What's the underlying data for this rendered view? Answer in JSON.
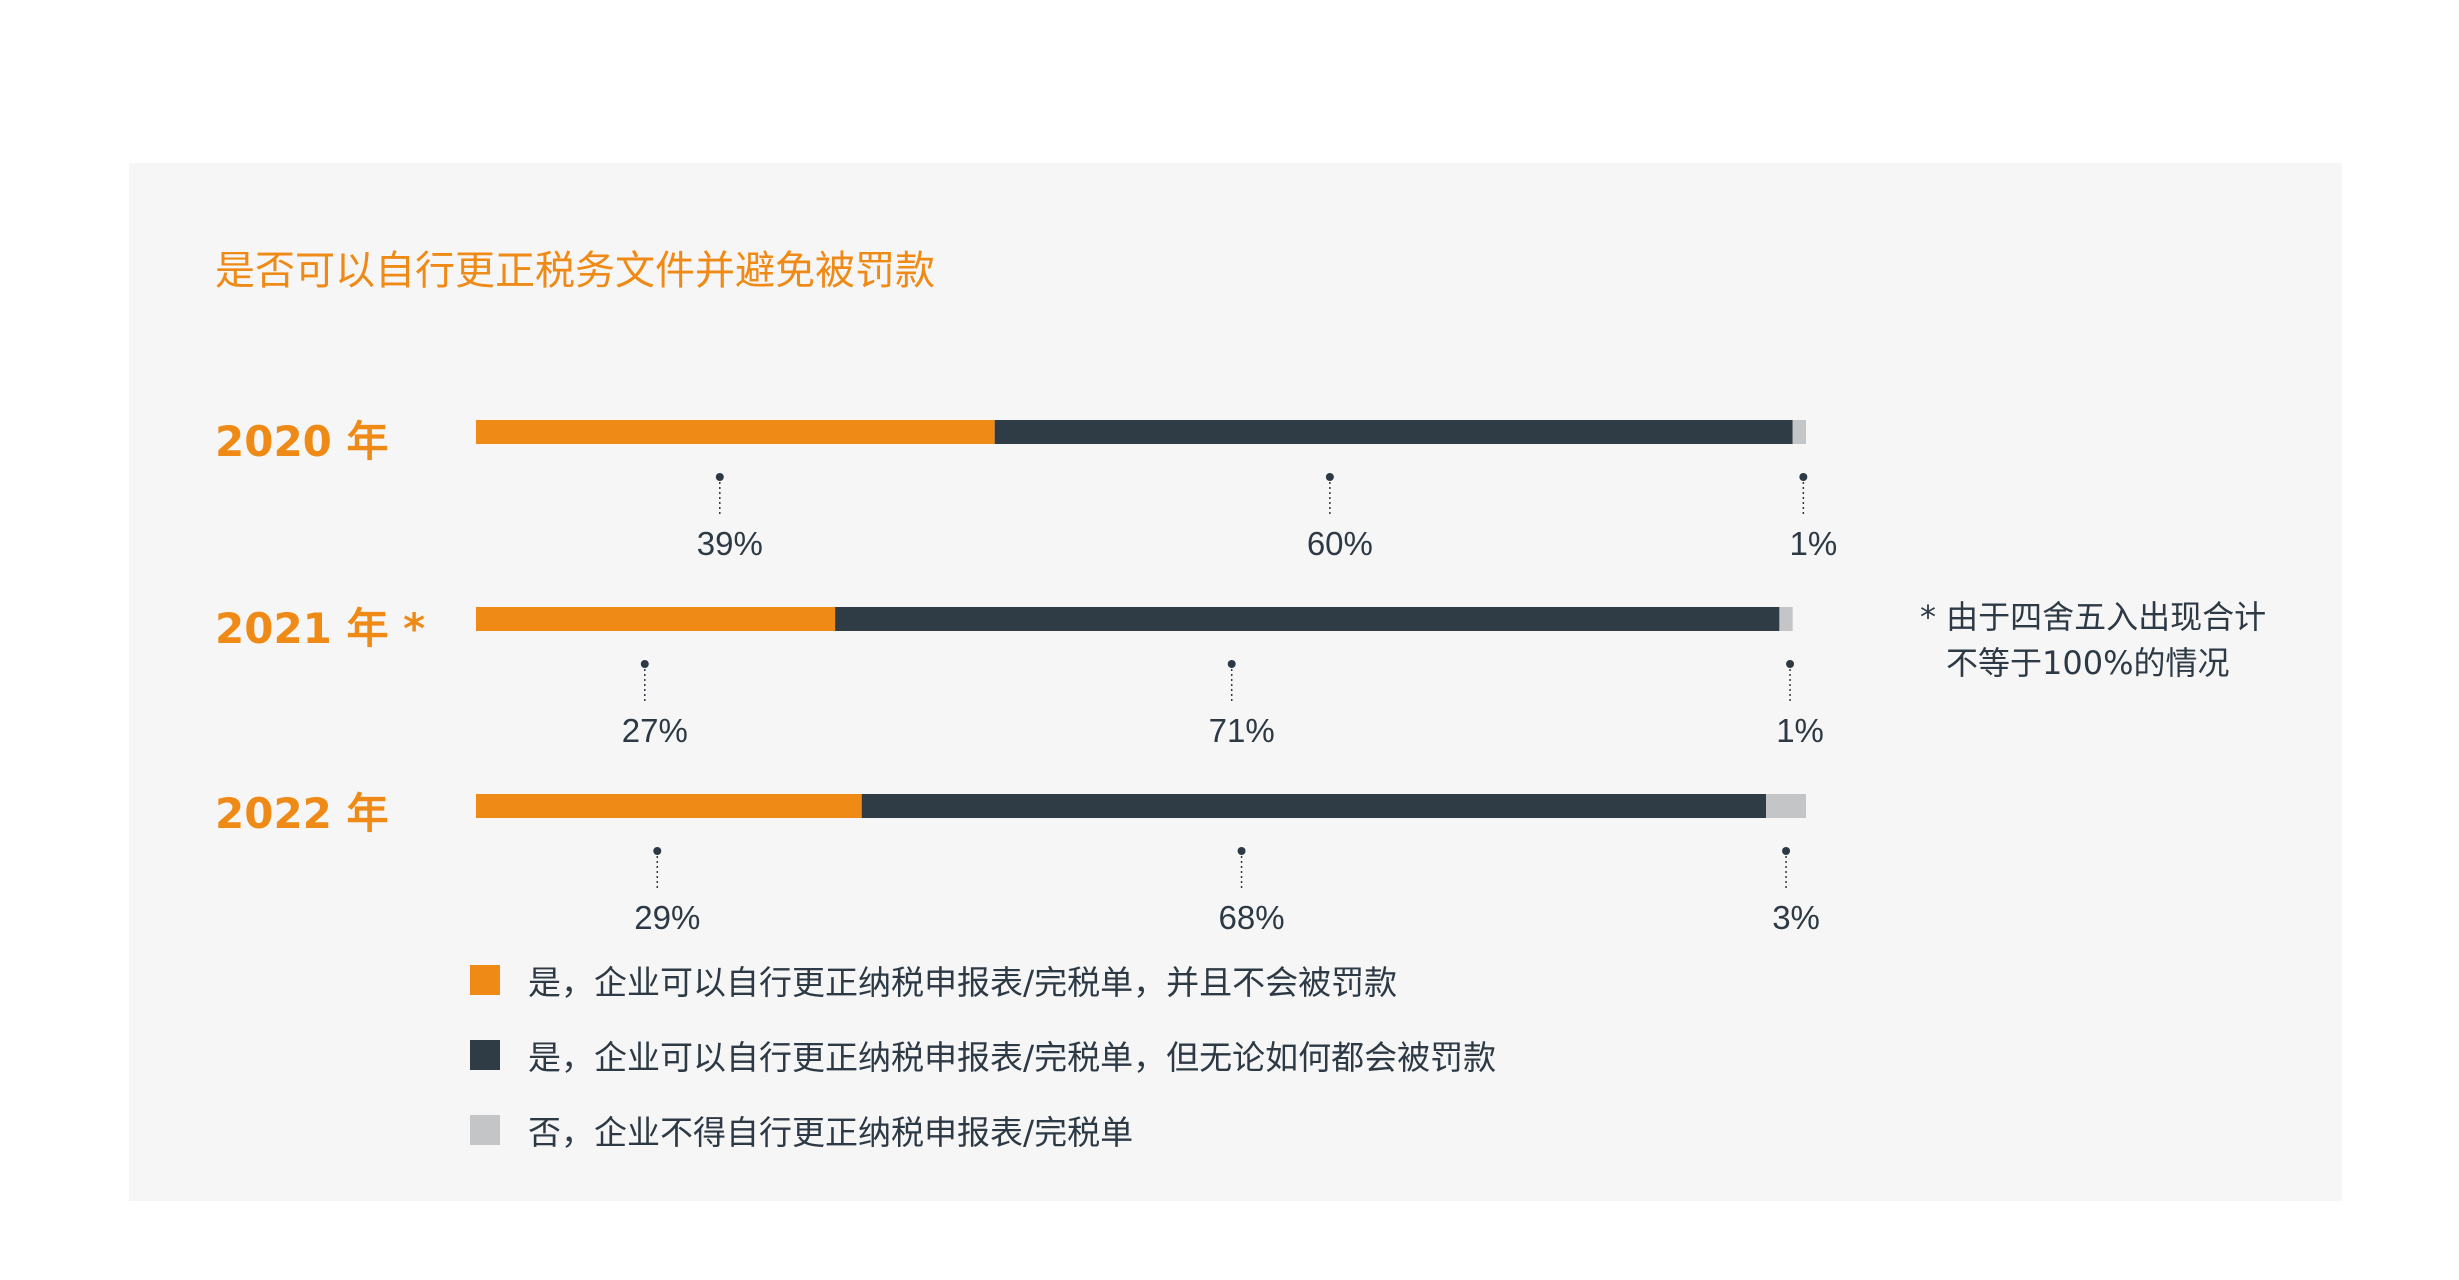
{
  "chart_data": {
    "type": "bar",
    "stacked": "horizontal-100%",
    "title": "是否可以自行更正税务文件并避免被罚款",
    "categories": [
      "2020 年",
      "2021 年 *",
      "2022 年"
    ],
    "series": [
      {
        "name": "是，企业可以自行更正纳税申报表/完税单，并且不会被罚款",
        "color": "#ef8a16",
        "values": [
          39,
          27,
          29
        ],
        "labels": [
          "39%",
          "27%",
          "29%"
        ]
      },
      {
        "name": "是，企业可以自行更正纳税申报表/完税单，但无论如何都会被罚款",
        "color": "#2f3c46",
        "values": [
          60,
          71,
          68
        ],
        "labels": [
          "60%",
          "71%",
          "68%"
        ]
      },
      {
        "name": "否，企业不得自行更正纳税申报表/完税单",
        "color": "#c3c5c7",
        "values": [
          1,
          1,
          3
        ],
        "labels": [
          "1%",
          "1%",
          "3%"
        ]
      }
    ],
    "note": "* 由于四舍五入出现合计",
    "note_line2": "不等于100%的情况",
    "legend_position": "bottom-left",
    "grid": false
  }
}
